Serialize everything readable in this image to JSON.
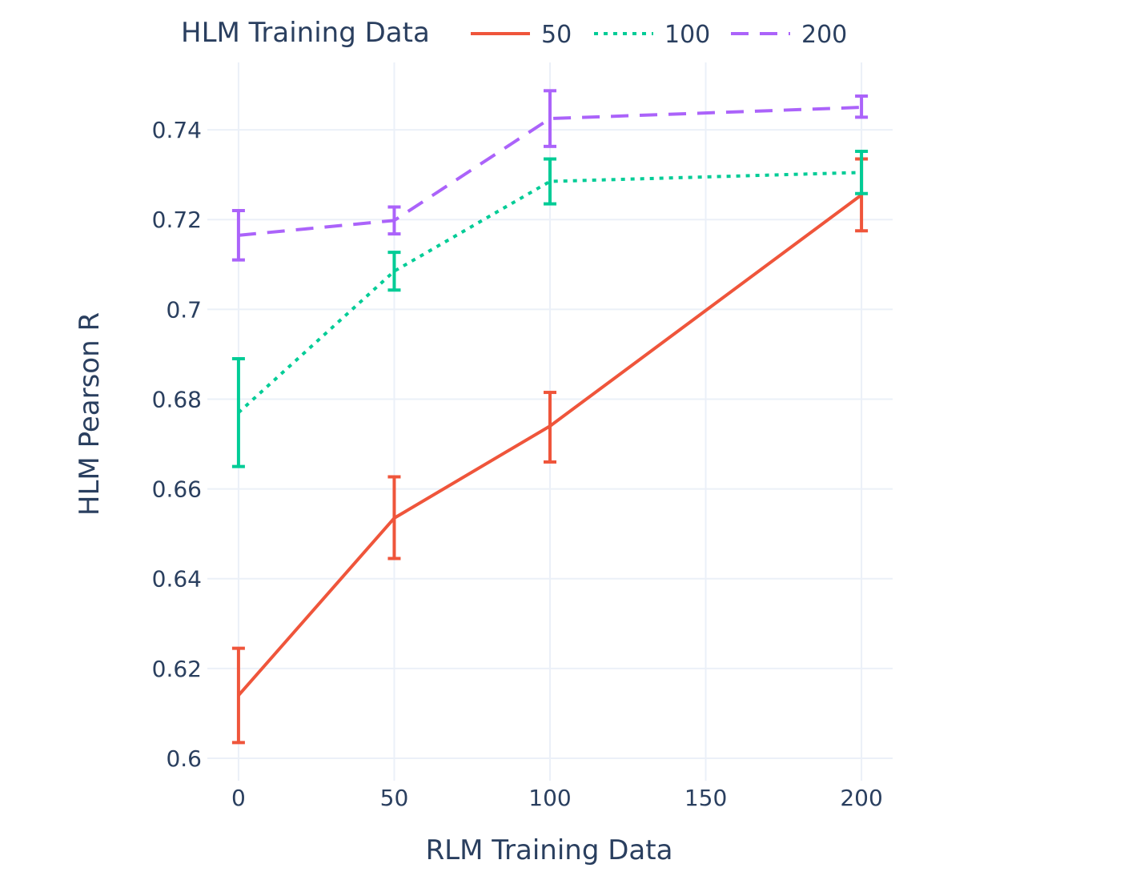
{
  "chart_data": {
    "type": "line",
    "xlabel": "RLM Training Data",
    "ylabel": "HLM Pearson R",
    "x": [
      0,
      50,
      100,
      200
    ],
    "xlim": [
      -10,
      210
    ],
    "ylim": [
      0.595,
      0.755
    ],
    "x_ticks": [
      0,
      50,
      100,
      150,
      200
    ],
    "y_ticks": [
      0.6,
      0.62,
      0.64,
      0.66,
      0.68,
      0.7,
      0.72,
      0.74
    ],
    "x_tick_labels": [
      "0",
      "50",
      "100",
      "150",
      "200"
    ],
    "y_tick_labels": [
      "0.6",
      "0.62",
      "0.64",
      "0.66",
      "0.68",
      "0.7",
      "0.72",
      "0.74"
    ],
    "grid": true,
    "legend": {
      "title": "HLM Training Data",
      "placement": "top-horizontal"
    },
    "series": [
      {
        "name": "50",
        "color": "#ef553b",
        "dash": "solid",
        "values": [
          0.614,
          0.6535,
          0.674,
          0.7255
        ],
        "error_low": [
          0.6035,
          0.6445,
          0.666,
          0.7175
        ],
        "error_high": [
          0.6245,
          0.6627,
          0.6815,
          0.7335
        ]
      },
      {
        "name": "100",
        "color": "#00cc96",
        "dash": "dot",
        "values": [
          0.677,
          0.7085,
          0.7285,
          0.7305
        ],
        "error_low": [
          0.665,
          0.7043,
          0.7235,
          0.7258
        ],
        "error_high": [
          0.689,
          0.7127,
          0.7335,
          0.7352
        ]
      },
      {
        "name": "200",
        "color": "#ab63fa",
        "dash": "dash",
        "values": [
          0.7165,
          0.7198,
          0.7425,
          0.745
        ],
        "error_low": [
          0.711,
          0.7168,
          0.7363,
          0.7428
        ],
        "error_high": [
          0.722,
          0.7228,
          0.7487,
          0.7475
        ]
      }
    ]
  }
}
